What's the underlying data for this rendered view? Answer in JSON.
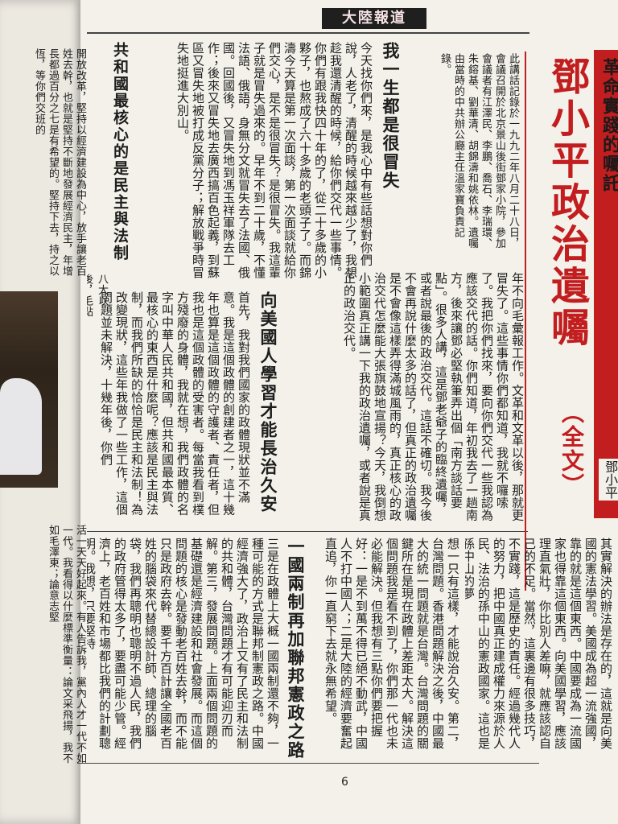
{
  "banner": "大陸報道",
  "page_number": "6",
  "title": "鄧小平政治遺囑",
  "subtitle": "（全文）",
  "side_tab_text": "革命實踐的囑託",
  "side_caption": "鄧小平",
  "intro": "此講話記錄於一九九二年八月二十八日，會議召開於北京景山後街鄧家小院，參加會議者有江澤民、李鵬、喬石、李瑞環、朱鎔基、劉華清、胡錦濤和姚依林。遺囑由當時的中共辦公廳主任溫家寶負責記錄。",
  "headings": {
    "h1": "我一生都是很冒失",
    "h2": "向美國人學習才能長治久安",
    "h3": "一國兩制再加聯邦憲政之路",
    "h4": "共和國最核心的是民主與法制"
  },
  "columns": {
    "c1": "今天找你們來，是我心中有些話想對你們說，人老了，清醒的時候越來越少了，我想趁我還清醒的時候，給你們交代一些事情。你們有跟我快四十年的了，從二十多歲的小夥子，也熬成了六十多歲的老頭子了。而錦濤今天算是第一次面談，第一次面談就給你們交心，是不是很冒失？是很冒失。我這輩子就是冒失過來的。早年不到二十歲，不懂法語、俄語，身無分文就冒失去了法國、俄國。回國後，又冒失地到馮玉祥軍隊去工作；後來又冒失地去廣西搞百色起義，到蘇區又冒失地被打成反黨分子；解放戰爭時冒失地挺進大別山。",
    "c2": "年不向毛彙報工作。文革和文革以後，那就更冒失了。這些事情你們都知道，我就不囉嗦了。我把你們找來，要向你們交代一些我認為應該交代的話。你們知道，年初我去了一趟南方，後來讓鄧必堅執筆弄出個「南方談話要點」。很多人講，這是鄧老爺子的臨終遺囑，或者說最後的政治交代。這話不確切。我今後不會再說什麼太多的話了，但真正的政治遺囑是不會像這樣弄得滿城風雨的，真正核心的政治交代怎麼能大張旗鼓地宣揚？今天，我倒想小範圍真正講一下我的政治遺囑，或者說是真正的政治交代。",
    "c3": "首先，我對我們國家的政體現狀並不滿意。我是這個政體的創建者之一，這十幾年也算是這個政體的守護者、責任者，但我也是這個政體的受害者。每當我看到樸方殘廢的身體，我就在想，我們政體的名字叫中華人民共和國，但共和國最本質、最核心的東西是什麼呢？應該是民主與法制，而我們所缺的恰恰是民主和法制！為改變現狀，這些年我做了一些工作，這個問題並未解決，十幾年後，你們",
    "c4": "想一只有這樣，才能說治久安。第二，台灣問題。香港問題解決之後，中國最大的統一問題就是台灣。台灣問題的關鍵所在是現在政體上差距太大。解決這個問題我是看不到了，你們那一代也未必能解決。但我想有三點你們要把握好：一是不到萬不得已絕不動武，中國人不打中國人；二是大陸的經濟要奮起直追，你一直窮下去就永無希望。",
    "c5": "三是在政體上大概一國兩制還不夠，一種可能的方式是聯邦制憲政之路。中國經濟強大了，政治上又有了民主和法制的共和體，台灣問題才有可能迎刃而解。第三，發展問題。上面兩個問題的基礎還是經濟建設和社會發展。而這個問題的核心是發動老百姓去幹，而不能只是政府去幹。要千方百計讓全國老百姓的腦袋來代替總設計師、總理的腦袋，我們再聰明也聰明不過人民，我們的政府管得太多了，要盡可能少管。經濟上，老百姓和市場都比我們的計劃聰明。我想，只要堅持",
    "c6": "其實解決的辦法是存在的，這就是向美國的憲法學習。美國成為超一流強國，靠的就是這個東西。中國要成為一流國家也得靠這個東西。向美國學習，應該理直氣壯，你比別人差嘛，就應該認自己的不足。當然，這裏邊有很多技巧，不實踐，這是歷史的責任。經過幾代人的努力，把中國真正建成權力來源於人民、法治的孫中山的憲政國家。這也是孫中山的夢",
    "c7": "八大以後，毛點我當總書記，我卻多",
    "c8": "開放改革，堅持以經濟建設為中心，放手讓老百姓去幹，也就是堅持不斷地發展經濟民主，年增長都過百分之七是有希望的。堅持下去，持之以恆，等你們交班的",
    "c9": "活一天天好起來。有人告訴我，黨內人才一代不如一代。我看得以什麼標準衡量：論文采飛揚，我不如毛澤東；論意志堅"
  }
}
